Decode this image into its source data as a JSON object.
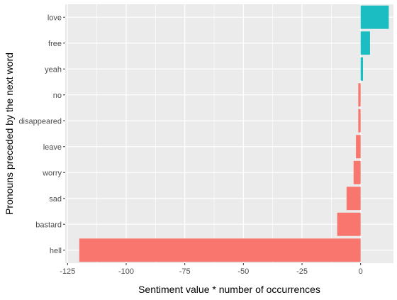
{
  "chart_data": {
    "type": "bar",
    "orientation": "horizontal",
    "xlabel": "Sentiment value * number of occurrences",
    "ylabel": "Pronouns preceded by the next word",
    "xlim": [
      -126,
      14
    ],
    "x_ticks": [
      -125,
      -100,
      -75,
      -50,
      -25,
      0
    ],
    "x_tick_labels": [
      "-125",
      "-100",
      "-75",
      "-50",
      "-25",
      "0"
    ],
    "grid": true,
    "legend": "none",
    "positive_color": "#1CBDC2",
    "negative_color": "#F8766D",
    "categories": [
      "love",
      "free",
      "yeah",
      "no",
      "disappeared",
      "leave",
      "worry",
      "sad",
      "bastard",
      "hell"
    ],
    "values": [
      12,
      4,
      1,
      -1,
      -1,
      -2,
      -3,
      -6,
      -10,
      -120
    ]
  }
}
